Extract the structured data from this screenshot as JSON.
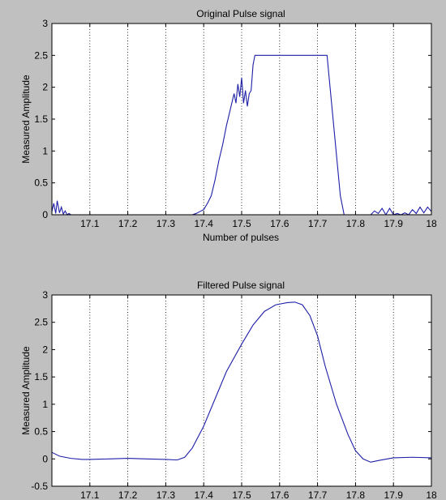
{
  "figure": {
    "background": "#c0c0c0",
    "axes_background": "#ffffff",
    "line_color": "#1f1fa8"
  },
  "chart_data": [
    {
      "type": "line",
      "title": "Original Pulse signal",
      "xlabel": "Number of pulses",
      "ylabel": "Measured Amplitude",
      "xlim": [
        17.0,
        18.0
      ],
      "ylim": [
        0,
        3
      ],
      "xticks": [
        17.1,
        17.2,
        17.3,
        17.4,
        17.5,
        17.6,
        17.7,
        17.8,
        17.9,
        18
      ],
      "xtick_labels": [
        "17.1",
        "17.2",
        "17.3",
        "17.4",
        "17.5",
        "17.6",
        "17.7",
        "17.8",
        "17.9",
        "18"
      ],
      "yticks": [
        0,
        0.5,
        1,
        1.5,
        2,
        2.5,
        3
      ],
      "ytick_labels": [
        "0",
        "0.5",
        "1",
        "1.5",
        "2",
        "2.5",
        "3"
      ],
      "grid": "x-dotted",
      "series": [
        {
          "x": [
            17.0,
            17.005,
            17.01,
            17.014,
            17.02,
            17.025,
            17.03,
            17.035,
            17.04,
            17.045,
            17.05,
            17.37,
            17.38,
            17.39,
            17.4,
            17.41,
            17.42,
            17.43,
            17.44,
            17.45,
            17.46,
            17.47,
            17.48,
            17.485,
            17.49,
            17.495,
            17.5,
            17.505,
            17.51,
            17.515,
            17.52,
            17.525,
            17.53,
            17.535,
            17.72,
            17.725,
            17.76,
            17.77,
            17.78,
            17.84,
            17.85,
            17.86,
            17.87,
            17.88,
            17.89,
            17.9,
            17.91,
            17.92,
            17.93,
            17.94,
            17.95,
            17.96,
            17.97,
            17.98,
            17.99,
            18.0
          ],
          "y": [
            0.05,
            0.18,
            0.02,
            0.22,
            0.03,
            0.12,
            0.01,
            0.06,
            0.0,
            0.02,
            0.0,
            0.0,
            0.02,
            0.05,
            0.08,
            0.18,
            0.3,
            0.55,
            0.85,
            1.1,
            1.4,
            1.65,
            1.9,
            1.75,
            2.05,
            1.85,
            2.15,
            1.75,
            1.95,
            1.7,
            1.9,
            1.95,
            2.35,
            2.5,
            2.5,
            2.5,
            0.3,
            0.0,
            0.0,
            0.0,
            0.06,
            0.02,
            0.1,
            0.0,
            0.1,
            0.0,
            0.02,
            0.0,
            0.03,
            0.0,
            0.08,
            0.02,
            0.12,
            0.03,
            0.12,
            0.05
          ]
        }
      ]
    },
    {
      "type": "line",
      "title": "Filtered Pulse signal",
      "xlabel": "",
      "ylabel": "Measured Amplitude",
      "xlim": [
        17.0,
        18.0
      ],
      "ylim": [
        -0.5,
        3
      ],
      "xticks": [
        17.1,
        17.2,
        17.3,
        17.4,
        17.5,
        17.6,
        17.7,
        17.8,
        17.9,
        18
      ],
      "xtick_labels": [
        "17.1",
        "17.2",
        "17.3",
        "17.4",
        "17.5",
        "17.6",
        "17.7",
        "17.8",
        "17.9",
        "18"
      ],
      "yticks": [
        -0.5,
        0,
        0.5,
        1,
        1.5,
        2,
        2.5,
        3
      ],
      "ytick_labels": [
        "-0.5",
        "0",
        "0.5",
        "1",
        "1.5",
        "2",
        "2.5",
        "3"
      ],
      "grid": "x-dotted",
      "series": [
        {
          "x": [
            17.0,
            17.02,
            17.05,
            17.08,
            17.1,
            17.15,
            17.2,
            17.25,
            17.3,
            17.33,
            17.35,
            17.37,
            17.4,
            17.43,
            17.46,
            17.5,
            17.53,
            17.56,
            17.59,
            17.62,
            17.64,
            17.66,
            17.68,
            17.7,
            17.72,
            17.75,
            17.78,
            17.8,
            17.82,
            17.84,
            17.86,
            17.9,
            17.95,
            18.0
          ],
          "y": [
            0.12,
            0.05,
            0.01,
            -0.01,
            -0.01,
            0.0,
            0.01,
            0.0,
            -0.01,
            -0.02,
            0.03,
            0.2,
            0.6,
            1.1,
            1.6,
            2.1,
            2.45,
            2.7,
            2.82,
            2.86,
            2.87,
            2.82,
            2.62,
            2.25,
            1.7,
            1.0,
            0.45,
            0.15,
            0.0,
            -0.06,
            -0.03,
            0.02,
            0.03,
            0.02
          ]
        }
      ]
    }
  ]
}
